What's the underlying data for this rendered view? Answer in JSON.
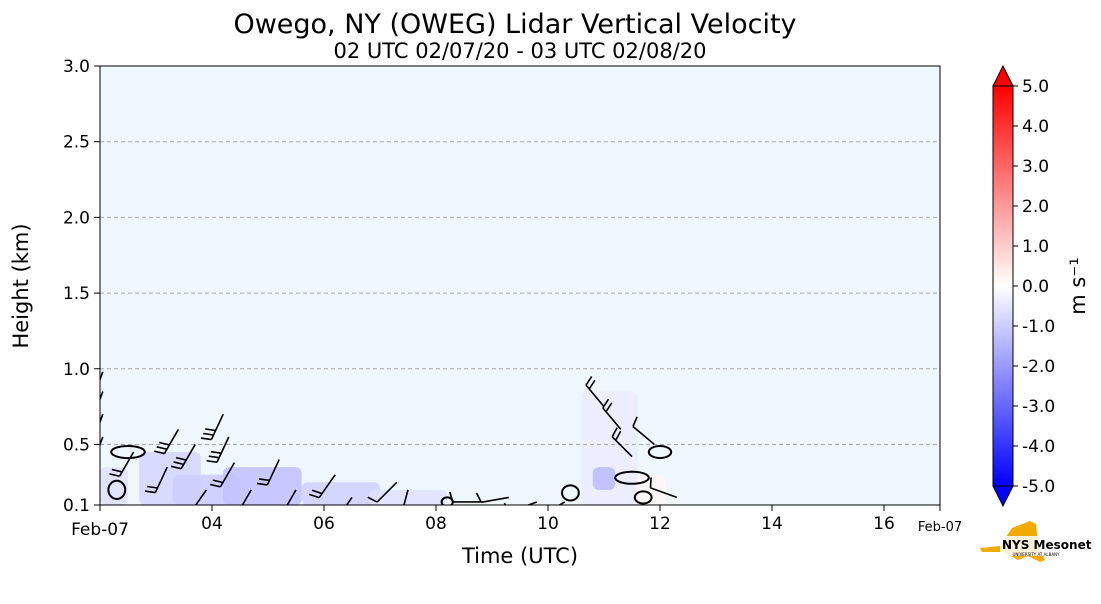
{
  "chart_data": {
    "type": "heatmap",
    "title": "Owego, NY (OWEG) Lidar Vertical Velocity",
    "subtitle": "02 UTC 02/07/20 - 03 UTC 02/08/20",
    "xlabel": "Time (UTC)",
    "ylabel": "Height (km)",
    "x_range": [
      2,
      17
    ],
    "ylim": [
      0.1,
      3.0
    ],
    "x_ticks": [
      {
        "value": 2,
        "label": "Feb-07"
      },
      {
        "value": 4,
        "label": "04"
      },
      {
        "value": 6,
        "label": "06"
      },
      {
        "value": 8,
        "label": "08"
      },
      {
        "value": 10,
        "label": "10"
      },
      {
        "value": 12,
        "label": "12"
      },
      {
        "value": 14,
        "label": "14"
      },
      {
        "value": 16,
        "label": "16"
      }
    ],
    "x_end_label": "Feb-07",
    "y_ticks": [
      {
        "value": 0.1,
        "label": "0.1"
      },
      {
        "value": 0.5,
        "label": "0.5"
      },
      {
        "value": 1.0,
        "label": "1.0"
      },
      {
        "value": 1.5,
        "label": "1.5"
      },
      {
        "value": 2.0,
        "label": "2.0"
      },
      {
        "value": 2.5,
        "label": "2.5"
      },
      {
        "value": 3.0,
        "label": "3.0"
      }
    ],
    "grid": "horizontal dashed",
    "background_color": "#eef7fe",
    "colorbar": {
      "label": "m s⁻¹",
      "min": -5.0,
      "max": 5.0,
      "ticks": [
        "5.0",
        "4.0",
        "3.0",
        "2.0",
        "1.0",
        "0.0",
        "-1.0",
        "-2.0",
        "-3.0",
        "-4.0",
        "-5.0"
      ],
      "low_color": "#0000ff",
      "mid_color": "#ffffff",
      "high_color": "#ff0000"
    },
    "velocity_patches": [
      {
        "t0": 2.0,
        "t1": 2.5,
        "h0": 0.1,
        "h1": 0.35,
        "w": -0.6
      },
      {
        "t0": 2.7,
        "t1": 3.8,
        "h0": 0.1,
        "h1": 0.45,
        "w": -0.8
      },
      {
        "t0": 3.3,
        "t1": 4.5,
        "h0": 0.1,
        "h1": 0.3,
        "w": -1.0
      },
      {
        "t0": 4.2,
        "t1": 5.6,
        "h0": 0.1,
        "h1": 0.35,
        "w": -1.2
      },
      {
        "t0": 5.6,
        "t1": 7.0,
        "h0": 0.1,
        "h1": 0.25,
        "w": -0.9
      },
      {
        "t0": 6.8,
        "t1": 8.2,
        "h0": 0.1,
        "h1": 0.2,
        "w": -0.6
      },
      {
        "t0": 10.6,
        "t1": 11.6,
        "h0": 0.1,
        "h1": 0.85,
        "w": -0.4
      },
      {
        "t0": 10.8,
        "t1": 11.2,
        "h0": 0.2,
        "h1": 0.35,
        "w": -1.3
      },
      {
        "t0": 11.6,
        "t1": 12.1,
        "h0": 0.1,
        "h1": 0.3,
        "w": 0.2
      }
    ],
    "wind_barbs": [
      {
        "t": 2.05,
        "h": 0.98,
        "angle": -160,
        "ticks": 3
      },
      {
        "t": 2.05,
        "h": 0.85,
        "angle": -160,
        "ticks": 3
      },
      {
        "t": 2.05,
        "h": 0.7,
        "angle": -160,
        "ticks": 3
      },
      {
        "t": 2.05,
        "h": 0.55,
        "angle": -160,
        "ticks": 2
      },
      {
        "t": 2.6,
        "h": 0.45,
        "angle": -150,
        "ticks": 2
      },
      {
        "t": 3.2,
        "h": 0.35,
        "angle": -155,
        "ticks": 2
      },
      {
        "t": 3.4,
        "h": 0.6,
        "angle": -150,
        "ticks": 3
      },
      {
        "t": 3.7,
        "h": 0.5,
        "angle": -150,
        "ticks": 3
      },
      {
        "t": 4.2,
        "h": 0.7,
        "angle": -155,
        "ticks": 3
      },
      {
        "t": 4.3,
        "h": 0.55,
        "angle": -155,
        "ticks": 3
      },
      {
        "t": 4.4,
        "h": 0.38,
        "angle": -150,
        "ticks": 2
      },
      {
        "t": 3.9,
        "h": 0.2,
        "angle": -145,
        "ticks": 2
      },
      {
        "t": 4.7,
        "h": 0.2,
        "angle": -150,
        "ticks": 2
      },
      {
        "t": 5.2,
        "h": 0.4,
        "angle": -155,
        "ticks": 2
      },
      {
        "t": 5.5,
        "h": 0.2,
        "angle": -150,
        "ticks": 2
      },
      {
        "t": 6.2,
        "h": 0.3,
        "angle": -145,
        "ticks": 2
      },
      {
        "t": 6.5,
        "h": 0.15,
        "angle": -145,
        "ticks": 1
      },
      {
        "t": 7.3,
        "h": 0.25,
        "angle": -135,
        "ticks": 1
      },
      {
        "t": 7.5,
        "h": 0.2,
        "angle": -165,
        "ticks": 1
      },
      {
        "t": 8.8,
        "h": 0.12,
        "angle": -90,
        "ticks": 1
      },
      {
        "t": 9.3,
        "h": 0.15,
        "angle": -100,
        "ticks": 1
      },
      {
        "t": 9.8,
        "h": 0.12,
        "angle": -110,
        "ticks": 1
      },
      {
        "t": 10.3,
        "h": 0.12,
        "angle": -120,
        "ticks": 1
      },
      {
        "t": 11.0,
        "h": 0.75,
        "angle": -40,
        "ticks": 2
      },
      {
        "t": 11.3,
        "h": 0.6,
        "angle": -40,
        "ticks": 2
      },
      {
        "t": 11.5,
        "h": 0.42,
        "angle": -45,
        "ticks": 2
      },
      {
        "t": 11.9,
        "h": 0.5,
        "angle": -50,
        "ticks": 1
      },
      {
        "t": 12.3,
        "h": 0.15,
        "angle": -70,
        "ticks": 1
      }
    ],
    "contours": [
      {
        "t": 2.5,
        "h": 0.45,
        "rx": 0.3,
        "rh": 0.04
      },
      {
        "t": 2.3,
        "h": 0.2,
        "rx": 0.15,
        "rh": 0.06
      },
      {
        "t": 8.2,
        "h": 0.12,
        "rx": 0.1,
        "rh": 0.03
      },
      {
        "t": 10.4,
        "h": 0.18,
        "rx": 0.15,
        "rh": 0.05
      },
      {
        "t": 11.5,
        "h": 0.28,
        "rx": 0.3,
        "rh": 0.04
      },
      {
        "t": 11.7,
        "h": 0.15,
        "rx": 0.15,
        "rh": 0.04
      },
      {
        "t": 12.0,
        "h": 0.45,
        "rx": 0.2,
        "rh": 0.04
      }
    ]
  },
  "logo": {
    "brand": "NYS Mesonet",
    "tagline": "UNIVERSITY AT ALBANY",
    "colors": {
      "state": "#f2a900",
      "text": "#46166b"
    }
  }
}
